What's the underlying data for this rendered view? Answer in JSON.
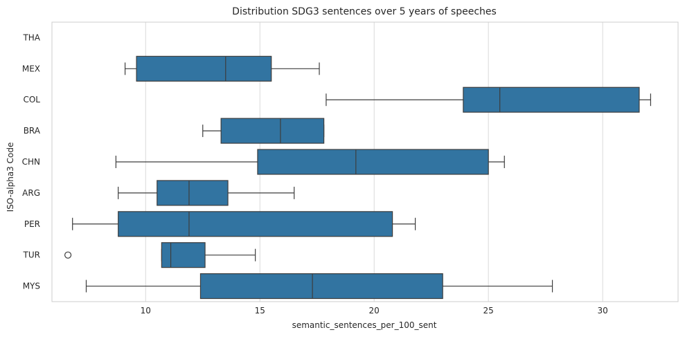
{
  "chart_data": {
    "type": "box",
    "orientation": "horizontal",
    "title": "Distribution SDG3 sentences over 5 years of speeches",
    "xlabel": "semantic_sentences_per_100_sent",
    "ylabel": "ISO-alpha3 Code",
    "xlim": [
      5.9,
      33.3
    ],
    "xticks": [
      10,
      15,
      20,
      25,
      30
    ],
    "grid": "vertical",
    "colors": {
      "box_fill": "#3274a1",
      "line": "#3d3d3d",
      "grid": "#d9d9d9",
      "frame": "#cccccc"
    },
    "categories": [
      "THA",
      "MEX",
      "COL",
      "BRA",
      "CHN",
      "ARG",
      "PER",
      "TUR",
      "MYS"
    ],
    "boxes": [
      {
        "category": "THA",
        "whisker_low": null,
        "q1": null,
        "median": null,
        "q3": null,
        "whisker_high": null,
        "outliers": []
      },
      {
        "category": "MEX",
        "whisker_low": 9.1,
        "q1": 9.6,
        "median": 13.5,
        "q3": 15.5,
        "whisker_high": 17.6,
        "outliers": []
      },
      {
        "category": "COL",
        "whisker_low": 17.9,
        "q1": 23.9,
        "median": 25.5,
        "q3": 31.6,
        "whisker_high": 32.1,
        "outliers": []
      },
      {
        "category": "BRA",
        "whisker_low": 12.5,
        "q1": 13.3,
        "median": 15.9,
        "q3": 17.8,
        "whisker_high": 17.8,
        "outliers": []
      },
      {
        "category": "CHN",
        "whisker_low": 8.7,
        "q1": 14.9,
        "median": 19.2,
        "q3": 25.0,
        "whisker_high": 25.7,
        "outliers": []
      },
      {
        "category": "ARG",
        "whisker_low": 8.8,
        "q1": 10.5,
        "median": 11.9,
        "q3": 13.6,
        "whisker_high": 16.5,
        "outliers": []
      },
      {
        "category": "PER",
        "whisker_low": 6.8,
        "q1": 8.8,
        "median": 11.9,
        "q3": 20.8,
        "whisker_high": 21.8,
        "outliers": []
      },
      {
        "category": "TUR",
        "whisker_low": 10.7,
        "q1": 10.7,
        "median": 11.1,
        "q3": 12.6,
        "whisker_high": 14.8,
        "outliers": [
          6.6
        ]
      },
      {
        "category": "MYS",
        "whisker_low": 7.4,
        "q1": 12.4,
        "median": 17.3,
        "q3": 23.0,
        "whisker_high": 27.8,
        "outliers": []
      }
    ]
  }
}
